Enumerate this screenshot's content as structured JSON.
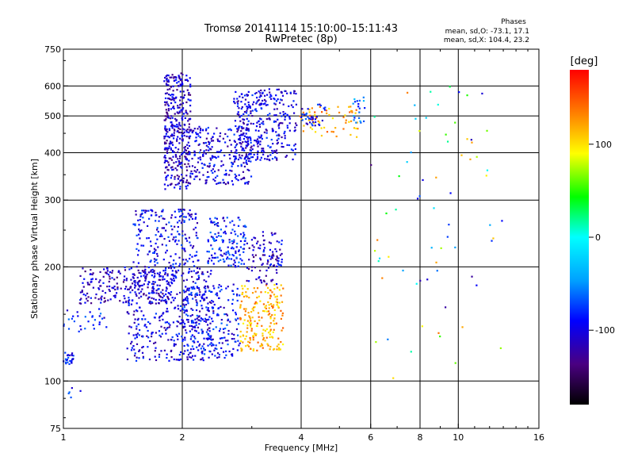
{
  "chart_data": {
    "type": "scatter",
    "title": "Tromsø 20141114 15:10:00–15:11:43",
    "subtitle": "RwPretec (8p)",
    "xlabel": "Frequency [MHz]",
    "ylabel": "Stationary phase Virtual Height [km]",
    "x_scale": "log",
    "y_scale": "log",
    "xlim": [
      1,
      16
    ],
    "ylim": [
      75,
      750
    ],
    "x_ticks": [
      1,
      2,
      4,
      6,
      8,
      10,
      16
    ],
    "x_tick_labels": [
      "1",
      "2",
      "4",
      "6",
      "8",
      "10",
      "16"
    ],
    "x_grid": [
      2,
      4,
      6,
      8,
      10
    ],
    "y_ticks": [
      75,
      100,
      200,
      300,
      400,
      500,
      600,
      750
    ],
    "y_tick_labels": [
      "75",
      "100",
      "200",
      "300",
      "400",
      "500",
      "600",
      "750"
    ],
    "y_grid": [
      100,
      200,
      300,
      400,
      500,
      600
    ],
    "grid": true,
    "info": {
      "heading": "Phases",
      "line_o": "mean, sd,O: -73.1, 17.1",
      "line_x": "mean, sd,X: 104.4, 23.2"
    },
    "colorbar": {
      "label": "[deg]",
      "range": [
        -180,
        180
      ],
      "ticks": [
        100,
        0,
        -100
      ],
      "tick_labels": [
        "100",
        "0",
        "-100"
      ],
      "colors": [
        "#000000",
        "#4a0080",
        "#0000ff",
        "#00a0ff",
        "#00ffff",
        "#00ff00",
        "#ffff00",
        "#ff8000",
        "#ff0000"
      ]
    },
    "clusters": [
      {
        "f": [
          1.0,
          1.06
        ],
        "h": [
          110,
          120
        ],
        "phase": -85,
        "count": 25
      },
      {
        "f": [
          1.0,
          1.3
        ],
        "h": [
          135,
          155
        ],
        "phase": -85,
        "count": 30
      },
      {
        "f": [
          1.0,
          1.15
        ],
        "h": [
          90,
          96
        ],
        "phase": -90,
        "count": 5
      },
      {
        "f": [
          1.1,
          1.9
        ],
        "h": [
          160,
          200
        ],
        "phase": -110,
        "count": 220
      },
      {
        "f": [
          1.45,
          2.4
        ],
        "h": [
          113,
          200
        ],
        "phase": -100,
        "count": 420
      },
      {
        "f": [
          1.5,
          2.2
        ],
        "h": [
          200,
          285
        ],
        "phase": -95,
        "count": 200
      },
      {
        "f": [
          2.0,
          2.8
        ],
        "h": [
          115,
          180
        ],
        "phase": -90,
        "count": 220
      },
      {
        "f": [
          2.3,
          2.9
        ],
        "h": [
          200,
          270
        ],
        "phase": -85,
        "count": 140
      },
      {
        "f": [
          2.8,
          3.6
        ],
        "h": [
          120,
          180
        ],
        "phase": 120,
        "count": 200
      },
      {
        "f": [
          2.9,
          3.5
        ],
        "h": [
          180,
          240
        ],
        "phase": -115,
        "count": 70
      },
      {
        "f": [
          3.2,
          3.6
        ],
        "h": [
          200,
          250
        ],
        "phase": -100,
        "count": 35
      },
      {
        "f": [
          1.8,
          2.1
        ],
        "h": [
          320,
          650
        ],
        "phase": -110,
        "count": 380
      },
      {
        "f": [
          2.1,
          3.0
        ],
        "h": [
          330,
          470
        ],
        "phase": -100,
        "count": 240
      },
      {
        "f": [
          2.7,
          3.9
        ],
        "h": [
          380,
          590
        ],
        "phase": -100,
        "count": 340
      },
      {
        "f": [
          3.9,
          5.6
        ],
        "h": [
          440,
          530
        ],
        "phase": 120,
        "count": 60
      },
      {
        "f": [
          4.0,
          4.6
        ],
        "h": [
          470,
          540
        ],
        "phase": -90,
        "count": 35
      },
      {
        "f": [
          5.4,
          5.8
        ],
        "h": [
          480,
          560
        ],
        "phase": -60,
        "count": 20
      },
      {
        "f": [
          6.0,
          13.0
        ],
        "h": [
          100,
          600
        ],
        "phase": 0,
        "count": 70
      }
    ]
  }
}
